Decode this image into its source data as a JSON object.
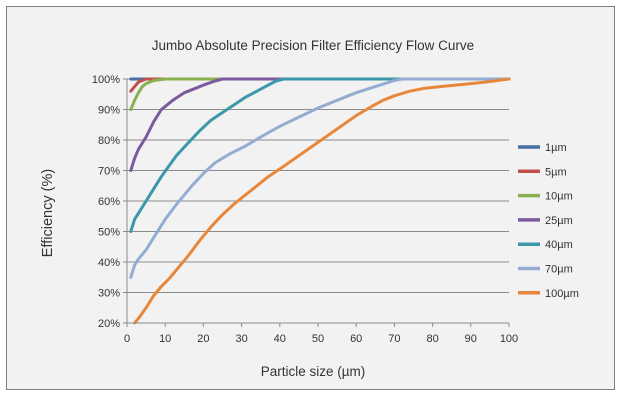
{
  "chart_data": {
    "type": "line",
    "title": "Jumbo Absolute Precision Filter Efficiency Flow Curve",
    "xlabel": "Particle size (µm)",
    "ylabel": "Efficiency (%)",
    "xlim": [
      0,
      100
    ],
    "ylim": [
      20,
      100
    ],
    "xticks": [
      0,
      10,
      20,
      30,
      40,
      50,
      60,
      70,
      80,
      90,
      100
    ],
    "yticks": [
      20,
      30,
      40,
      50,
      60,
      70,
      80,
      90,
      100
    ],
    "ytick_suffix": "%",
    "grid": "horizontal",
    "legend_position": "right",
    "series": [
      {
        "name": "1µm",
        "color": "#4a6fa5",
        "points": [
          [
            1,
            100
          ],
          [
            100,
            100
          ]
        ]
      },
      {
        "name": "5µm",
        "color": "#c0504d",
        "points": [
          [
            1,
            96
          ],
          [
            2,
            97.5
          ],
          [
            3,
            99
          ],
          [
            5,
            100
          ],
          [
            100,
            100
          ]
        ]
      },
      {
        "name": "10µm",
        "color": "#8bb050",
        "points": [
          [
            1,
            90
          ],
          [
            2,
            93
          ],
          [
            3,
            95.5
          ],
          [
            4,
            97.5
          ],
          [
            5,
            98.5
          ],
          [
            7,
            99.5
          ],
          [
            10,
            100
          ],
          [
            100,
            100
          ]
        ]
      },
      {
        "name": "25µm",
        "color": "#7b5a9e",
        "points": [
          [
            1,
            70
          ],
          [
            2,
            74
          ],
          [
            3,
            77
          ],
          [
            5,
            81
          ],
          [
            7,
            86
          ],
          [
            9,
            90
          ],
          [
            12,
            93
          ],
          [
            15,
            95.5
          ],
          [
            18,
            97
          ],
          [
            20,
            98
          ],
          [
            23,
            99.3
          ],
          [
            25,
            100
          ],
          [
            100,
            100
          ]
        ]
      },
      {
        "name": "40µm",
        "color": "#3c97a8",
        "points": [
          [
            1,
            50
          ],
          [
            2,
            54
          ],
          [
            3,
            56
          ],
          [
            5,
            60
          ],
          [
            7,
            64
          ],
          [
            9,
            68
          ],
          [
            11,
            71.5
          ],
          [
            13,
            75
          ],
          [
            16,
            79
          ],
          [
            19,
            83
          ],
          [
            22,
            86.5
          ],
          [
            25,
            89
          ],
          [
            28,
            91.5
          ],
          [
            31,
            94
          ],
          [
            34,
            96
          ],
          [
            37,
            98
          ],
          [
            39,
            99.3
          ],
          [
            41,
            100
          ],
          [
            100,
            100
          ]
        ]
      },
      {
        "name": "70µm",
        "color": "#95acd2",
        "points": [
          [
            1,
            35
          ],
          [
            2,
            39
          ],
          [
            3,
            41
          ],
          [
            5,
            44
          ],
          [
            7,
            48
          ],
          [
            10,
            54
          ],
          [
            13,
            59
          ],
          [
            17,
            65
          ],
          [
            20,
            69
          ],
          [
            23,
            72.5
          ],
          [
            27,
            75.5
          ],
          [
            31,
            78
          ],
          [
            35,
            81
          ],
          [
            40,
            84.5
          ],
          [
            45,
            87.5
          ],
          [
            50,
            90.5
          ],
          [
            55,
            93
          ],
          [
            60,
            95.5
          ],
          [
            65,
            97.5
          ],
          [
            70,
            99.5
          ],
          [
            72,
            100
          ],
          [
            100,
            100
          ]
        ]
      },
      {
        "name": "100µm",
        "color": "#e8873a",
        "points": [
          [
            2,
            20
          ],
          [
            3,
            21.5
          ],
          [
            5,
            25
          ],
          [
            7,
            29
          ],
          [
            9,
            32
          ],
          [
            11,
            34.5
          ],
          [
            13,
            37.5
          ],
          [
            16,
            42
          ],
          [
            19,
            47
          ],
          [
            22,
            51.5
          ],
          [
            25,
            55.5
          ],
          [
            28,
            59
          ],
          [
            31,
            62
          ],
          [
            34,
            65
          ],
          [
            37,
            68
          ],
          [
            40,
            70.5
          ],
          [
            44,
            74
          ],
          [
            48,
            77.5
          ],
          [
            52,
            81
          ],
          [
            56,
            84.5
          ],
          [
            60,
            88
          ],
          [
            64,
            91
          ],
          [
            67,
            93
          ],
          [
            70,
            94.5
          ],
          [
            74,
            96
          ],
          [
            78,
            97
          ],
          [
            82,
            97.5
          ],
          [
            86,
            98
          ],
          [
            90,
            98.5
          ],
          [
            94,
            99
          ],
          [
            100,
            100
          ]
        ]
      }
    ]
  }
}
